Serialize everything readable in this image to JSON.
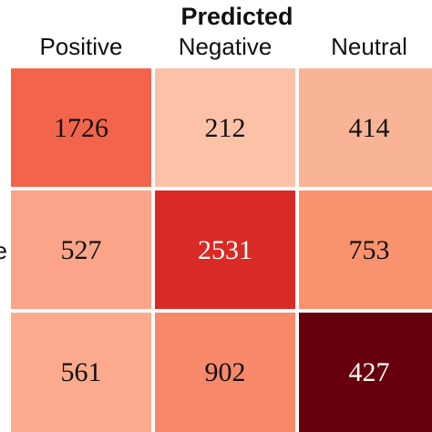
{
  "chart_data": {
    "type": "heatmap",
    "title": "Predicted",
    "x_categories": [
      "Positive",
      "Negative",
      "Neutral"
    ],
    "y_categories": [
      "",
      "e",
      ""
    ],
    "values": [
      [
        1726,
        212,
        414
      ],
      [
        527,
        2531,
        753
      ],
      [
        561,
        902,
        427
      ]
    ],
    "cell_colors": [
      [
        "#f2654c",
        "#fcc2a8",
        "#f9b497"
      ],
      [
        "#fba489",
        "#d92a26",
        "#f8926f"
      ],
      [
        "#fcaa8d",
        "#f8886a",
        "#67000d"
      ]
    ],
    "text_colors": [
      [
        "#111111",
        "#111111",
        "#111111"
      ],
      [
        "#111111",
        "#ffffff",
        "#111111"
      ],
      [
        "#111111",
        "#111111",
        "#ffffff"
      ]
    ],
    "legend": "none",
    "grid": false
  }
}
